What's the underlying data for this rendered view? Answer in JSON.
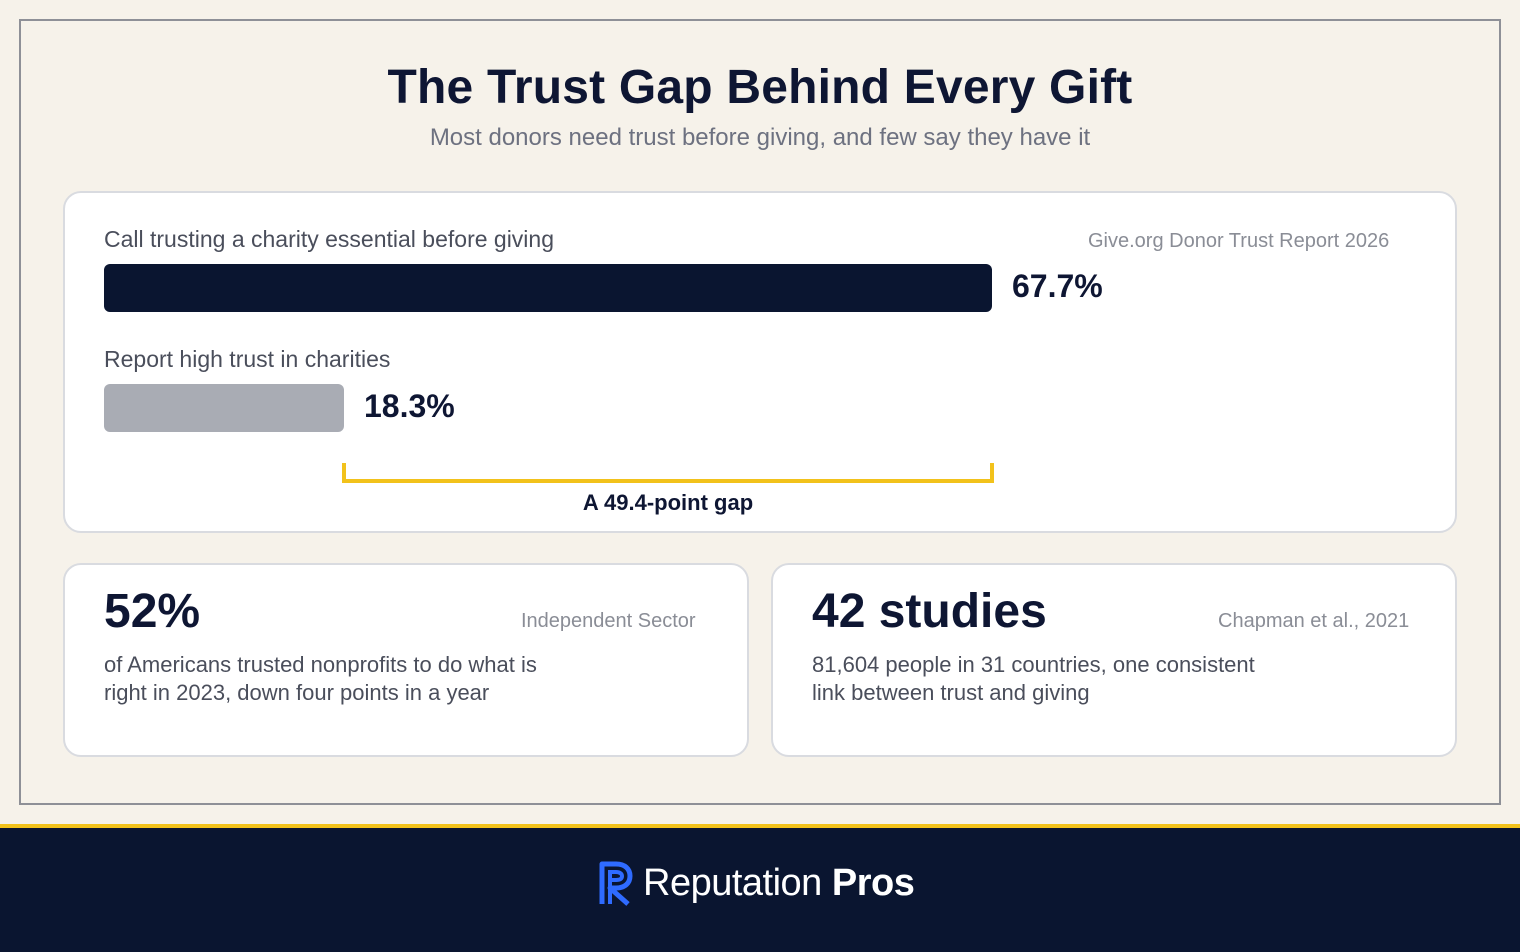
{
  "header": {
    "title": "The Trust Gap Behind Every Gift",
    "subtitle": "Most donors need trust before giving, and few say they have it"
  },
  "chart_data": {
    "type": "bar",
    "orientation": "horizontal",
    "source": "Give.org Donor Trust Report 2026",
    "categories": [
      "Call trusting a charity essential before giving",
      "Report high trust in charities"
    ],
    "values": [
      67.7,
      18.3
    ],
    "value_labels": [
      "67.7%",
      "18.3%"
    ],
    "colors": [
      "#0a1530",
      "#a9acb4"
    ],
    "gap_label": "A 49.4-point gap",
    "xlim": [
      0,
      100
    ]
  },
  "stats": [
    {
      "value": "52%",
      "source": "Independent Sector",
      "line1": "of Americans trusted nonprofits to do what is",
      "line2": "right in 2023, down four points in a year"
    },
    {
      "value": "42 studies",
      "source": "Chapman et al., 2021",
      "line1": "81,604 people in 31 countries, one consistent",
      "line2": "link between trust and giving"
    }
  ],
  "footer": {
    "brand_light": "Reputation",
    "brand_bold": "Pros",
    "accent_color": "#f2c21b",
    "logo_color": "#2f6bff"
  }
}
